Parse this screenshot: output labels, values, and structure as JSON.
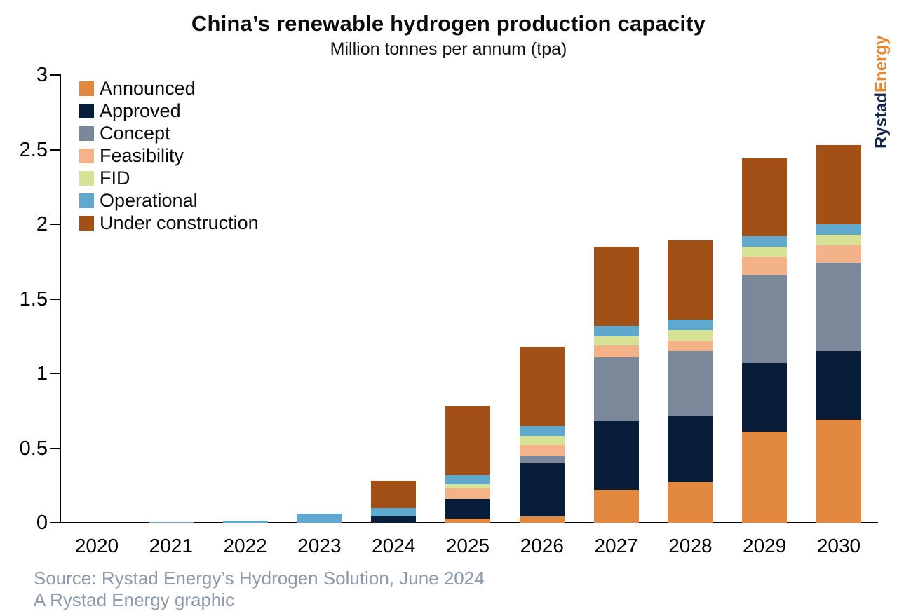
{
  "header": {
    "title": "China’s renewable hydrogen production capacity",
    "subtitle": "Million tonnes per annum (tpa)"
  },
  "logo": {
    "part1": "Rystad",
    "part2": "Energy",
    "part1_color": "#14284B",
    "part2_color": "#E8862D"
  },
  "footer": {
    "source_line1": "Source: Rystad Energy’s Hydrogen Solution, June 2024",
    "source_line2": "A Rystad Energy graphic",
    "color": "#8D9AA9"
  },
  "chart_data": {
    "type": "bar",
    "stacked": true,
    "title": "China’s renewable hydrogen production capacity",
    "subtitle": "Million tonnes per annum (tpa)",
    "xlabel": "",
    "ylabel": "Million tonnes per annum (tpa)",
    "ylim": [
      0,
      3
    ],
    "yticks": [
      "0",
      "0.5",
      "1",
      "1.5",
      "2",
      "2.5",
      "3"
    ],
    "ytick_values": [
      0,
      0.5,
      1,
      1.5,
      2,
      2.5,
      3
    ],
    "grid": false,
    "legend_position": "top-left",
    "categories": [
      "2020",
      "2021",
      "2022",
      "2023",
      "2024",
      "2025",
      "2026",
      "2027",
      "2028",
      "2029",
      "2030"
    ],
    "series": [
      {
        "name": "Announced",
        "color": "#E2883F",
        "values": [
          0,
          0,
          0,
          0,
          0,
          0.03,
          0.04,
          0.22,
          0.27,
          0.61,
          0.69
        ]
      },
      {
        "name": "Approved",
        "color": "#071D3A",
        "values": [
          0,
          0,
          0,
          0,
          0.04,
          0.13,
          0.36,
          0.46,
          0.45,
          0.46,
          0.46
        ]
      },
      {
        "name": "Concept",
        "color": "#7A8899",
        "values": [
          0,
          0,
          0,
          0,
          0,
          0,
          0.05,
          0.43,
          0.43,
          0.59,
          0.59
        ]
      },
      {
        "name": "Feasibility",
        "color": "#F4B289",
        "values": [
          0,
          0,
          0,
          0,
          0,
          0.07,
          0.07,
          0.08,
          0.07,
          0.12,
          0.12
        ]
      },
      {
        "name": "FID",
        "color": "#D8E296",
        "values": [
          0,
          0,
          0,
          0,
          0,
          0.03,
          0.06,
          0.06,
          0.07,
          0.07,
          0.07
        ]
      },
      {
        "name": "Operational",
        "color": "#5FA8CE",
        "values": [
          0,
          0.005,
          0.015,
          0.06,
          0.06,
          0.06,
          0.07,
          0.07,
          0.07,
          0.07,
          0.07
        ]
      },
      {
        "name": "Under construction",
        "color": "#A35016",
        "values": [
          0,
          0,
          0,
          0,
          0.18,
          0.46,
          0.53,
          0.53,
          0.53,
          0.52,
          0.53
        ]
      }
    ],
    "totals": [
      0,
      0.005,
      0.015,
      0.06,
      0.28,
      0.78,
      1.18,
      1.85,
      1.89,
      2.44,
      2.53
    ]
  }
}
